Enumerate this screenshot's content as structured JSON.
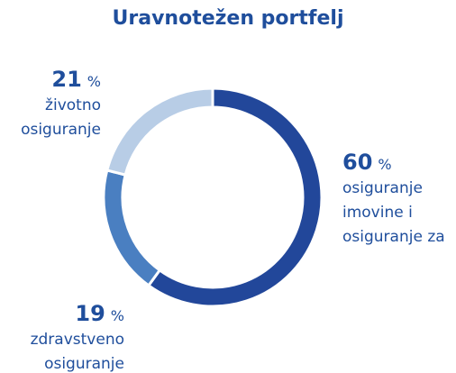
{
  "chart_data": {
    "type": "pie",
    "title": "Uravnotežen portfelj",
    "categories": [
      "osiguranje\nimovine i\nosiguranje za",
      "zdravstveno\nosiguranje",
      "životno\nosiguranje"
    ],
    "values": [
      60,
      19,
      21
    ],
    "value_unit": "%",
    "colors": [
      "#22479a",
      "#4a7fc1",
      "#b8cde6"
    ],
    "donut": true
  }
}
